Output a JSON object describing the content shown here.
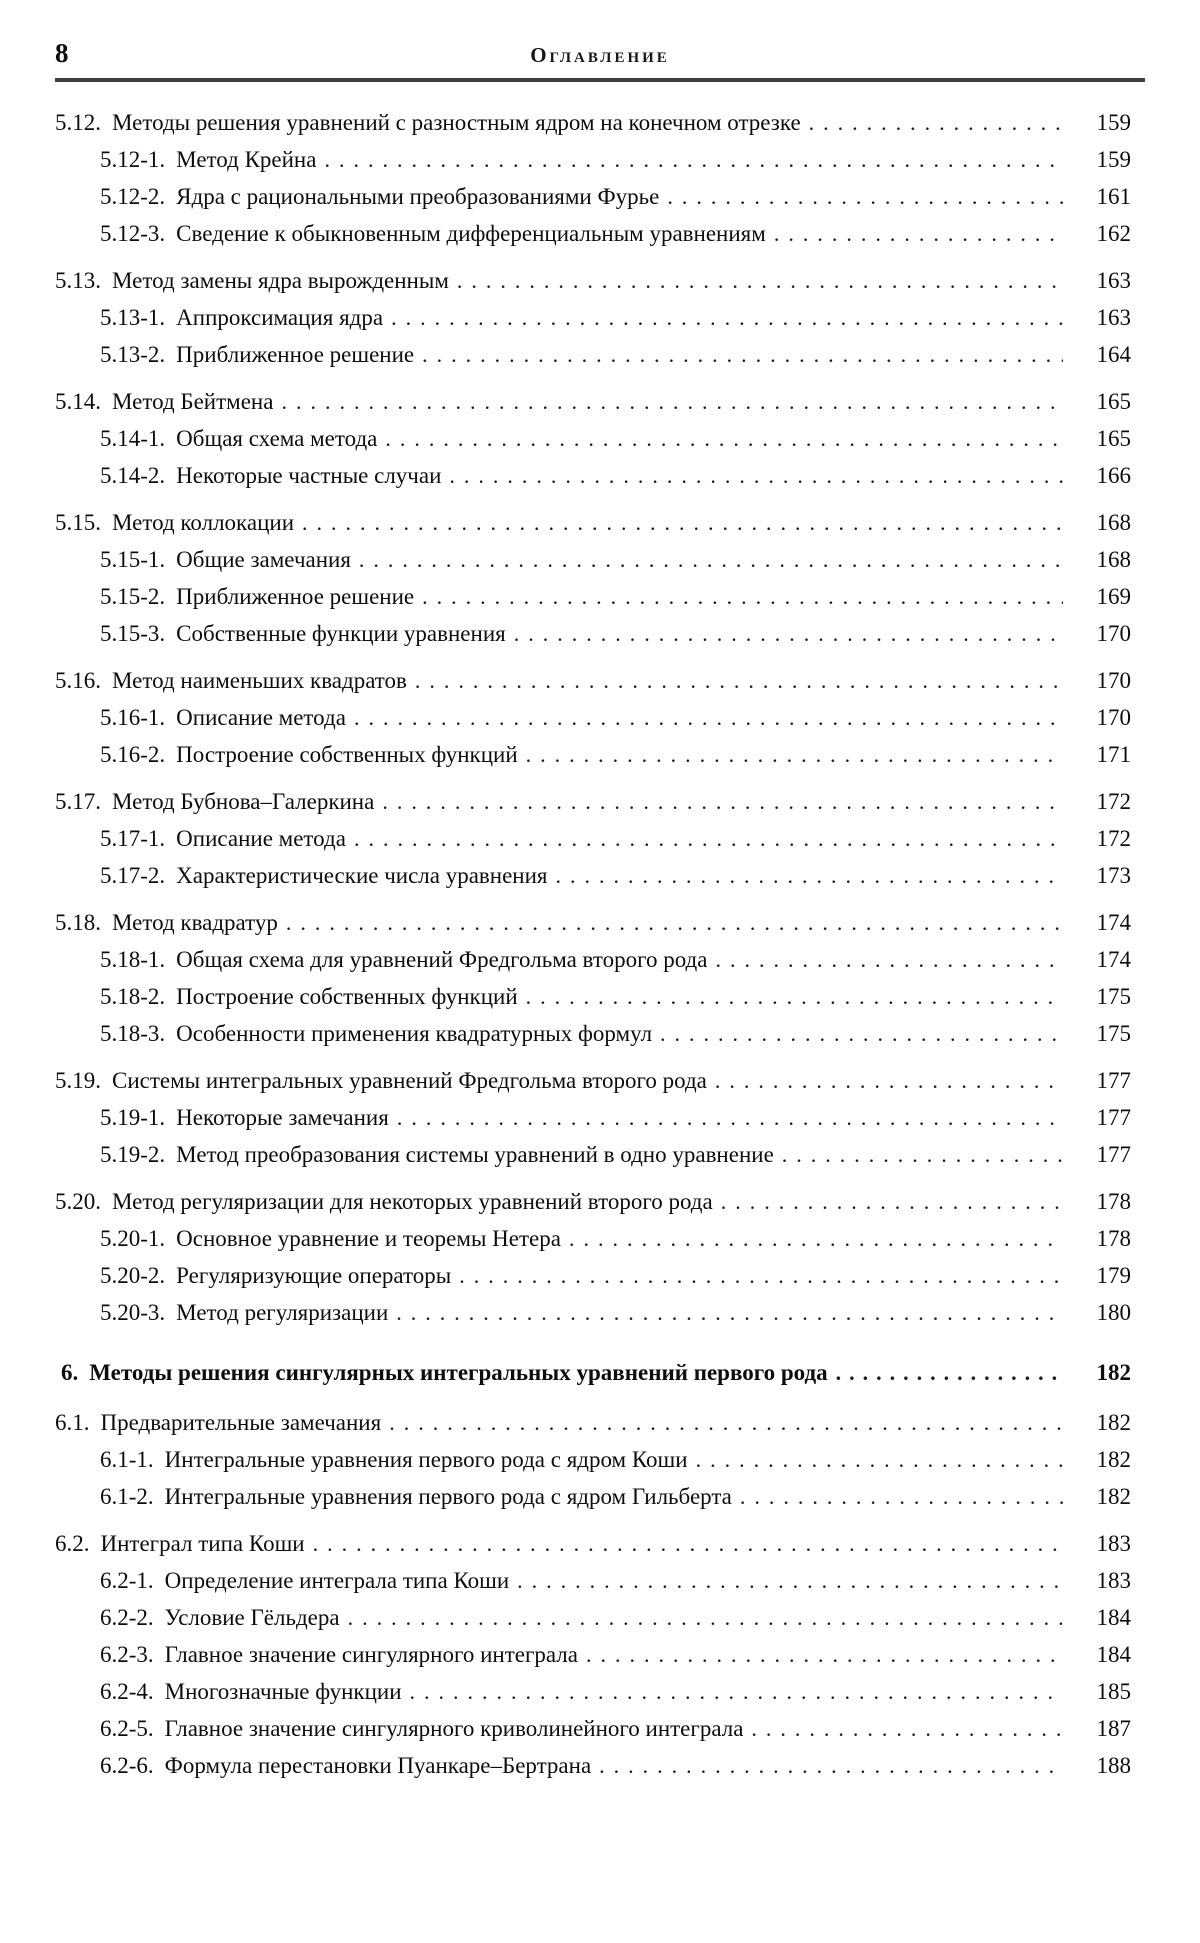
{
  "page": {
    "number": "8",
    "header_title": "Оглавление"
  },
  "toc": {
    "entries": [
      {
        "number": "5.12.",
        "title": "Методы решения уравнений с разностным ядром на конечном отрезке",
        "page": "159",
        "level": 1
      },
      {
        "number": "5.12-1.",
        "title": "Метод Крейна",
        "page": "159",
        "level": 2
      },
      {
        "number": "5.12-2.",
        "title": "Ядра с рациональными преобразованиями Фурье",
        "page": "161",
        "level": 2
      },
      {
        "number": "5.12-3.",
        "title": "Сведение к обыкновенным дифференциальным уравнениям",
        "page": "162",
        "level": 2
      },
      {
        "number": "5.13.",
        "title": "Метод замены ядра вырожденным",
        "page": "163",
        "level": 1
      },
      {
        "number": "5.13-1.",
        "title": "Аппроксимация ядра",
        "page": "163",
        "level": 2
      },
      {
        "number": "5.13-2.",
        "title": "Приближенное решение",
        "page": "164",
        "level": 2
      },
      {
        "number": "5.14.",
        "title": "Метод Бейтмена",
        "page": "165",
        "level": 1
      },
      {
        "number": "5.14-1.",
        "title": "Общая схема метода",
        "page": "165",
        "level": 2
      },
      {
        "number": "5.14-2.",
        "title": "Некоторые частные случаи",
        "page": "166",
        "level": 2
      },
      {
        "number": "5.15.",
        "title": "Метод коллокации",
        "page": "168",
        "level": 1
      },
      {
        "number": "5.15-1.",
        "title": "Общие замечания",
        "page": "168",
        "level": 2
      },
      {
        "number": "5.15-2.",
        "title": "Приближенное решение",
        "page": "169",
        "level": 2
      },
      {
        "number": "5.15-3.",
        "title": "Собственные функции уравнения",
        "page": "170",
        "level": 2
      },
      {
        "number": "5.16.",
        "title": "Метод наименьших квадратов",
        "page": "170",
        "level": 1
      },
      {
        "number": "5.16-1.",
        "title": "Описание метода",
        "page": "170",
        "level": 2
      },
      {
        "number": "5.16-2.",
        "title": "Построение собственных функций",
        "page": "171",
        "level": 2
      },
      {
        "number": "5.17.",
        "title": "Метод Бубнова–Галеркина",
        "page": "172",
        "level": 1
      },
      {
        "number": "5.17-1.",
        "title": "Описание метода",
        "page": "172",
        "level": 2
      },
      {
        "number": "5.17-2.",
        "title": "Характеристические числа уравнения",
        "page": "173",
        "level": 2
      },
      {
        "number": "5.18.",
        "title": "Метод квадратур",
        "page": "174",
        "level": 1
      },
      {
        "number": "5.18-1.",
        "title": "Общая схема для уравнений Фредгольма второго рода",
        "page": "174",
        "level": 2
      },
      {
        "number": "5.18-2.",
        "title": "Построение собственных функций",
        "page": "175",
        "level": 2
      },
      {
        "number": "5.18-3.",
        "title": "Особенности применения квадратурных формул",
        "page": "175",
        "level": 2
      },
      {
        "number": "5.19.",
        "title": "Системы интегральных уравнений Фредгольма второго рода",
        "page": "177",
        "level": 1
      },
      {
        "number": "5.19-1.",
        "title": "Некоторые замечания",
        "page": "177",
        "level": 2
      },
      {
        "number": "5.19-2.",
        "title": "Метод преобразования системы уравнений в одно уравнение",
        "page": "177",
        "level": 2
      },
      {
        "number": "5.20.",
        "title": "Метод регуляризации для некоторых уравнений второго рода",
        "page": "178",
        "level": 1
      },
      {
        "number": "5.20-1.",
        "title": "Основное уравнение и теоремы Нетера",
        "page": "178",
        "level": 2
      },
      {
        "number": "5.20-2.",
        "title": "Регуляризующие операторы",
        "page": "179",
        "level": 2
      },
      {
        "number": "5.20-3.",
        "title": "Метод регуляризации",
        "page": "180",
        "level": 2
      },
      {
        "number": "6.",
        "title": "Методы решения сингулярных интегральных уравнений первого рода",
        "page": "182",
        "level": 0
      },
      {
        "number": "6.1.",
        "title": "Предварительные замечания",
        "page": "182",
        "level": 1
      },
      {
        "number": "6.1-1.",
        "title": "Интегральные уравнения первого рода с ядром Коши",
        "page": "182",
        "level": 2
      },
      {
        "number": "6.1-2.",
        "title": "Интегральные уравнения первого рода с ядром Гильберта",
        "page": "182",
        "level": 2
      },
      {
        "number": "6.2.",
        "title": "Интеграл типа Коши",
        "page": "183",
        "level": 1
      },
      {
        "number": "6.2-1.",
        "title": "Определение интеграла типа Коши",
        "page": "183",
        "level": 2
      },
      {
        "number": "6.2-2.",
        "title": "Условие Гёльдера",
        "page": "184",
        "level": 2
      },
      {
        "number": "6.2-3.",
        "title": "Главное значение сингулярного интеграла",
        "page": "184",
        "level": 2
      },
      {
        "number": "6.2-4.",
        "title": "Многозначные функции",
        "page": "185",
        "level": 2
      },
      {
        "number": "6.2-5.",
        "title": "Главное значение сингулярного криволинейного интеграла",
        "page": "187",
        "level": 2
      },
      {
        "number": "6.2-6.",
        "title": "Формула перестановки Пуанкаре–Бертрана",
        "page": "188",
        "level": 2
      }
    ]
  }
}
